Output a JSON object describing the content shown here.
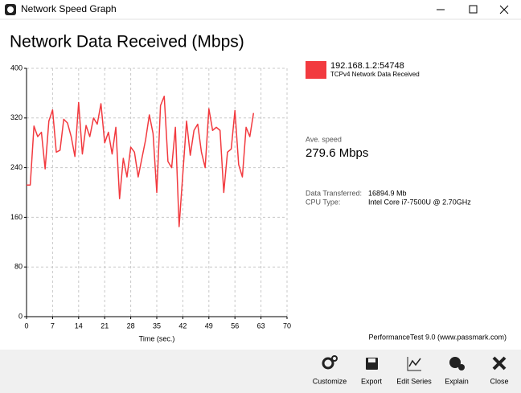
{
  "window": {
    "title": "Network Speed Graph"
  },
  "chart_data": {
    "type": "line",
    "title": "Network Data Received (Mbps)",
    "x_label": "Time (sec.)",
    "x": [
      0,
      1,
      2,
      3,
      4,
      5,
      6,
      7,
      8,
      9,
      10,
      11,
      12,
      13,
      14,
      15,
      16,
      17,
      18,
      19,
      20,
      21,
      22,
      23,
      24,
      25,
      26,
      27,
      28,
      29,
      30,
      31,
      32,
      33,
      34,
      35,
      36,
      37,
      38,
      39,
      40,
      41,
      42,
      43,
      44,
      45,
      46,
      47,
      48,
      49,
      50,
      51,
      52,
      53,
      54,
      55,
      56,
      57,
      58,
      59,
      60,
      61
    ],
    "series": [
      {
        "name": "192.168.1.2:54748",
        "description": "TCPv4 Network Data Received",
        "color": "#f23a3f",
        "values": [
          212,
          212,
          307,
          290,
          297,
          238,
          315,
          333,
          265,
          268,
          318,
          312,
          290,
          258,
          345,
          262,
          308,
          290,
          320,
          310,
          343,
          280,
          297,
          262,
          305,
          190,
          255,
          225,
          273,
          265,
          225,
          255,
          285,
          325,
          295,
          200,
          340,
          355,
          250,
          240,
          305,
          145,
          230,
          315,
          260,
          300,
          310,
          265,
          240,
          335,
          300,
          305,
          300,
          200,
          265,
          270,
          332,
          245,
          225,
          305,
          290,
          328
        ]
      }
    ],
    "xlim": [
      0,
      70
    ],
    "xticks": [
      0,
      7,
      14,
      21,
      28,
      35,
      42,
      49,
      56,
      63,
      70
    ],
    "ylim": [
      0,
      400
    ],
    "yticks": [
      0,
      80,
      160,
      240,
      320,
      400
    ],
    "grid": true
  },
  "stats": {
    "ave_label": "Ave. speed",
    "ave_value": "279.6 Mbps",
    "rows": [
      [
        "Data Transferred:",
        "16894.9 Mb"
      ],
      [
        "CPU Type:",
        "Intel Core i7-7500U @ 2.70GHz"
      ]
    ]
  },
  "footer": "PerformanceTest 9.0 (www.passmark.com)",
  "toolbar": [
    "Customize",
    "Export",
    "Edit Series",
    "Explain",
    "Close"
  ]
}
